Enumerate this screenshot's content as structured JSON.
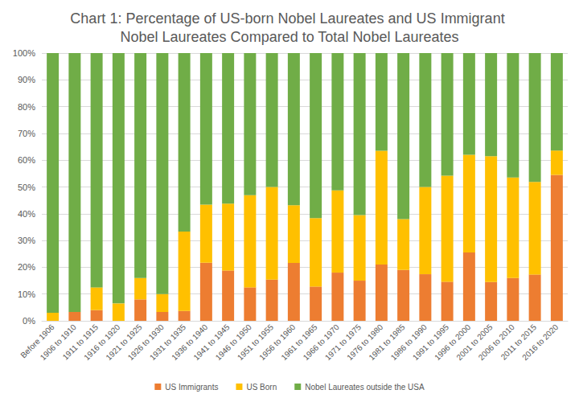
{
  "chart_data": {
    "type": "bar",
    "title": "Chart 1: Percentage of US-born Nobel Laureates and US Immigrant Nobel Laureates Compared to Total Nobel Laureates",
    "stacked": true,
    "grid": true,
    "legend": "bottom",
    "categories": [
      "Before 1906",
      "1906 to 1910",
      "1911 to 1915",
      "1916 to 1920",
      "1921 to 1925",
      "1926 to 1930",
      "1931 to 1935",
      "1936 to 1940",
      "1941 to 1945",
      "1946 to 1950",
      "1951 to 1955",
      "1956 to 1960",
      "1961 to 1965",
      "1966 to 1970",
      "1971 to 1975",
      "1976 to 1980",
      "1981 to 1985",
      "1986 to 1990",
      "1991 to 1995",
      "1996 to 2000",
      "2001 to 2005",
      "2006 to 2010",
      "2011 to 2015",
      "2016 to 2020"
    ],
    "series": [
      {
        "name": "US Immigrants",
        "color": "#ed7d31",
        "values": [
          0,
          3.3,
          4,
          0,
          8,
          3.3,
          3.7,
          21.7,
          18.8,
          12.5,
          15.4,
          21.6,
          12.8,
          18,
          15,
          21,
          19,
          17.4,
          14.6,
          25.5,
          14.5,
          16,
          17.3,
          54.5
        ]
      },
      {
        "name": "US Born",
        "color": "#ffc000",
        "values": [
          3,
          0,
          8.5,
          6.5,
          8,
          6.7,
          29.6,
          21.7,
          25,
          34.4,
          34.6,
          21.6,
          25.6,
          30.7,
          24.5,
          42.5,
          19,
          32.6,
          39.6,
          36.5,
          47,
          37.5,
          34.6,
          9.1
        ]
      },
      {
        "name": "Nobel Laureates outside the USA",
        "color": "#70ad47",
        "values": [
          97,
          96.7,
          87.5,
          93.5,
          84,
          90,
          66.7,
          56.6,
          56.2,
          53.1,
          50,
          56.8,
          61.6,
          51.3,
          60.5,
          36.5,
          62,
          50,
          45.8,
          38,
          38.5,
          46.5,
          48.1,
          36.4
        ]
      }
    ],
    "ylim": [
      0,
      100
    ],
    "yticks": [
      {
        "value": 0,
        "label": "0%"
      },
      {
        "value": 10,
        "label": "10%"
      },
      {
        "value": 20,
        "label": "20%"
      },
      {
        "value": 30,
        "label": "30%"
      },
      {
        "value": 40,
        "label": "40%"
      },
      {
        "value": 50,
        "label": "50%"
      },
      {
        "value": 60,
        "label": "60%"
      },
      {
        "value": 70,
        "label": "70%"
      },
      {
        "value": 80,
        "label": "80%"
      },
      {
        "value": 90,
        "label": "90%"
      },
      {
        "value": 100,
        "label": "100%"
      }
    ]
  }
}
